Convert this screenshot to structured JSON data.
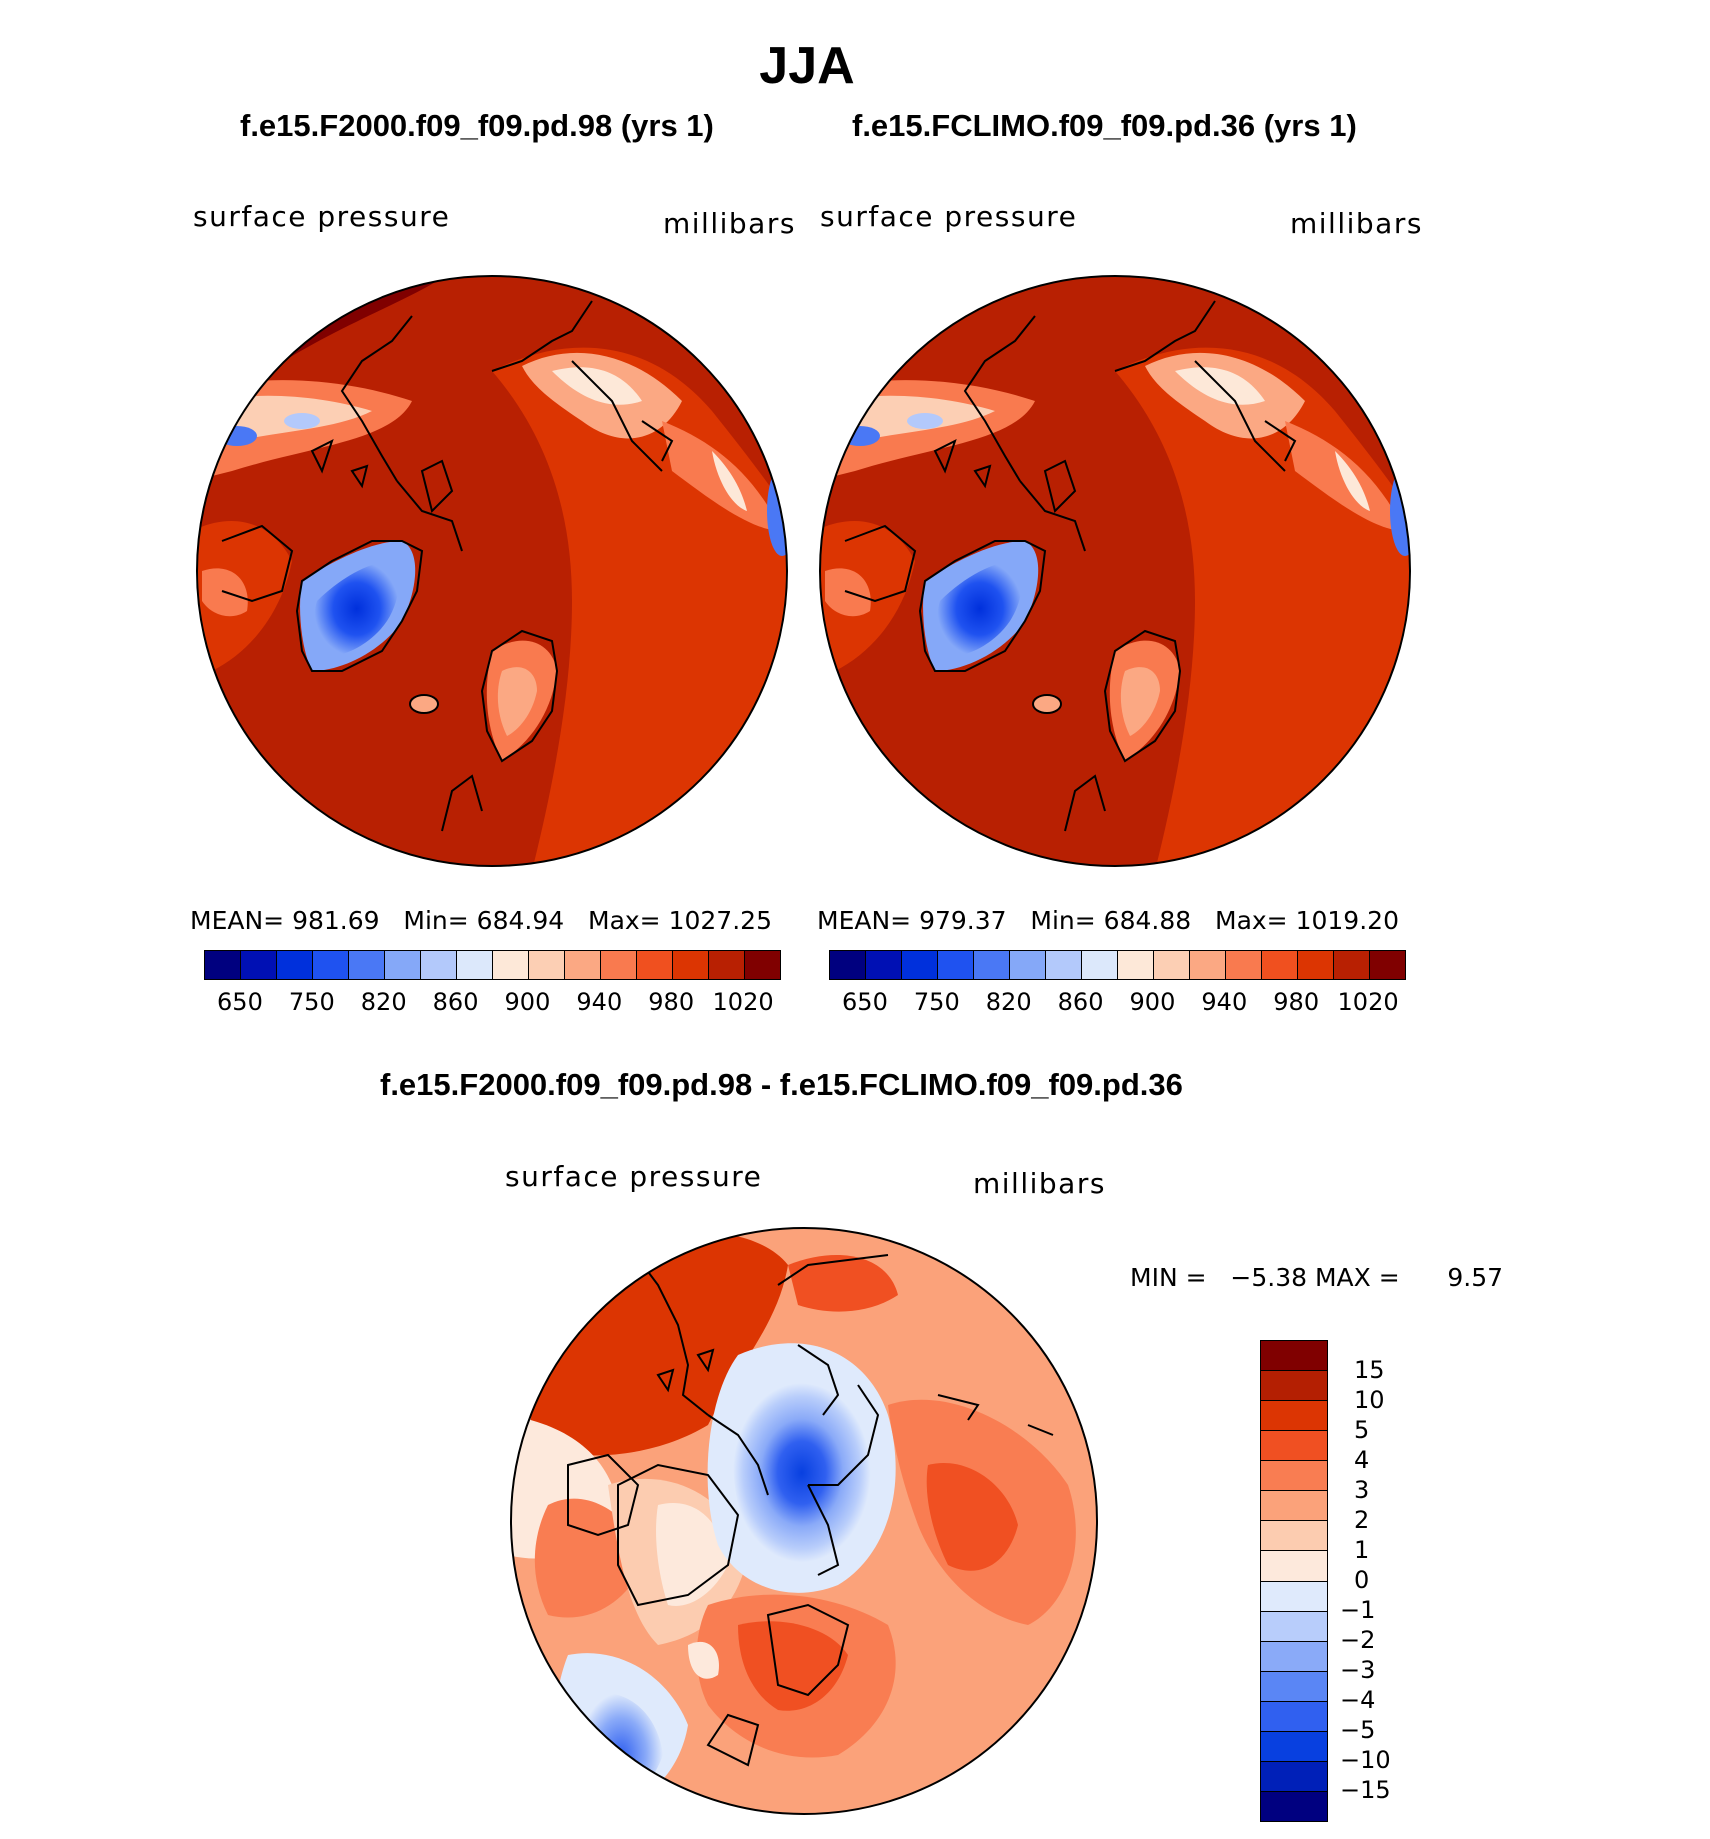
{
  "page": {
    "title": "JJA",
    "difference_title": "f.e15.F2000.f09_f09.pd.98 - f.e15.FCLIMO.f09_f09.pd.36"
  },
  "panels": [
    {
      "title": "f.e15.F2000.f09_f09.pd.98 (yrs 1)",
      "variable": "surface pressure",
      "units": "millibars",
      "mean_label": "MEAN=",
      "mean": "981.69",
      "min_label": "Min=",
      "min": "684.94",
      "max_label": "Max=",
      "max": "1027.25",
      "colorbar_ticks": [
        "650",
        "750",
        "820",
        "860",
        "900",
        "940",
        "980",
        "1020"
      ]
    },
    {
      "title": "f.e15.FCLIMO.f09_f09.pd.36 (yrs 1)",
      "variable": "surface pressure",
      "units": "millibars",
      "mean_label": "MEAN=",
      "mean": "979.37",
      "min_label": "Min=",
      "min": "684.88",
      "max_label": "Max=",
      "max": "1019.20",
      "colorbar_ticks": [
        "650",
        "750",
        "820",
        "860",
        "900",
        "940",
        "980",
        "1020"
      ]
    }
  ],
  "difference": {
    "variable": "surface pressure",
    "units": "millibars",
    "min_label": "MIN =",
    "min": "−5.38",
    "max_label": "MAX =",
    "max": "9.57",
    "colorbar_ticks": [
      "−15",
      "−10",
      "−5",
      "−4",
      "−3",
      "−2",
      "−1",
      "0",
      "1",
      "2",
      "3",
      "4",
      "5",
      "10",
      "15"
    ]
  },
  "colors": {
    "abs_scale": [
      "#00007f",
      "#0010b4",
      "#0030dc",
      "#1f52f0",
      "#4a78f5",
      "#85a8f8",
      "#b3c9fb",
      "#dce8fb",
      "#fde8d8",
      "#fccfb4",
      "#fba883",
      "#f97a4f",
      "#f0501f",
      "#dc3502",
      "#b82002",
      "#800000"
    ],
    "diff_scale": [
      "#000080",
      "#0020b8",
      "#0840e0",
      "#3060f0",
      "#5a86f5",
      "#8aaaf8",
      "#b8cdfb",
      "#dfeafc",
      "#fde9dc",
      "#fcccb0",
      "#fba27a",
      "#f97d52",
      "#f05022",
      "#dc3503",
      "#b41f02",
      "#800000"
    ]
  }
}
